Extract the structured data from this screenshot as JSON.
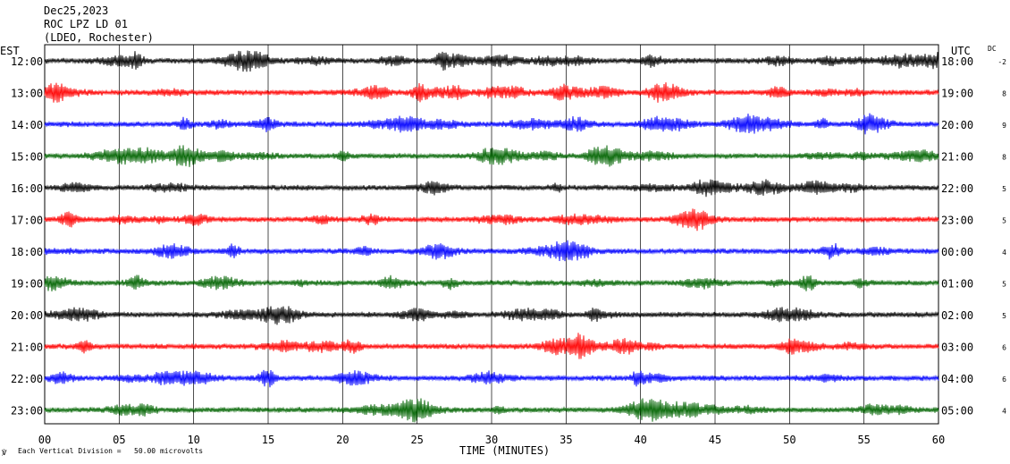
{
  "header": {
    "date": "Dec25,2023",
    "station": "ROC LPZ LD 01",
    "network": "(LDEO, Rochester)"
  },
  "chart_data": {
    "type": "line",
    "title": "Dec25,2023",
    "subtitle": "ROC LPZ LD 01 (LDEO, Rochester)",
    "xlabel": "TIME (MINUTES)",
    "xlim": [
      0,
      60
    ],
    "x_ticks": [
      "00",
      "05",
      "10",
      "15",
      "20",
      "25",
      "30",
      "35",
      "40",
      "45",
      "50",
      "55",
      "60"
    ],
    "left_axis_label": "EST",
    "right_axis_label": "UTC",
    "dc_label": "DC",
    "grid": true,
    "footnote": "Each Vertical Division =   50.00 microvolts",
    "trace_colors": [
      "#000000",
      "#ff0000",
      "#0000ff",
      "#006400"
    ],
    "rows": [
      {
        "est": "12:00",
        "utc": "18:00",
        "dc": "-2",
        "color": "#000000"
      },
      {
        "est": "13:00",
        "utc": "19:00",
        "dc": "8",
        "color": "#ff0000"
      },
      {
        "est": "14:00",
        "utc": "20:00",
        "dc": "9",
        "color": "#0000ff"
      },
      {
        "est": "15:00",
        "utc": "21:00",
        "dc": "8",
        "color": "#006400"
      },
      {
        "est": "16:00",
        "utc": "22:00",
        "dc": "5",
        "color": "#000000"
      },
      {
        "est": "17:00",
        "utc": "23:00",
        "dc": "5",
        "color": "#ff0000"
      },
      {
        "est": "18:00",
        "utc": "00:00",
        "dc": "4",
        "color": "#0000ff"
      },
      {
        "est": "19:00",
        "utc": "01:00",
        "dc": "5",
        "color": "#006400"
      },
      {
        "est": "20:00",
        "utc": "02:00",
        "dc": "5",
        "color": "#000000"
      },
      {
        "est": "21:00",
        "utc": "03:00",
        "dc": "6",
        "color": "#ff0000"
      },
      {
        "est": "22:00",
        "utc": "04:00",
        "dc": "6",
        "color": "#0000ff"
      },
      {
        "est": "23:00",
        "utc": "05:00",
        "dc": "4",
        "color": "#006400"
      }
    ]
  }
}
